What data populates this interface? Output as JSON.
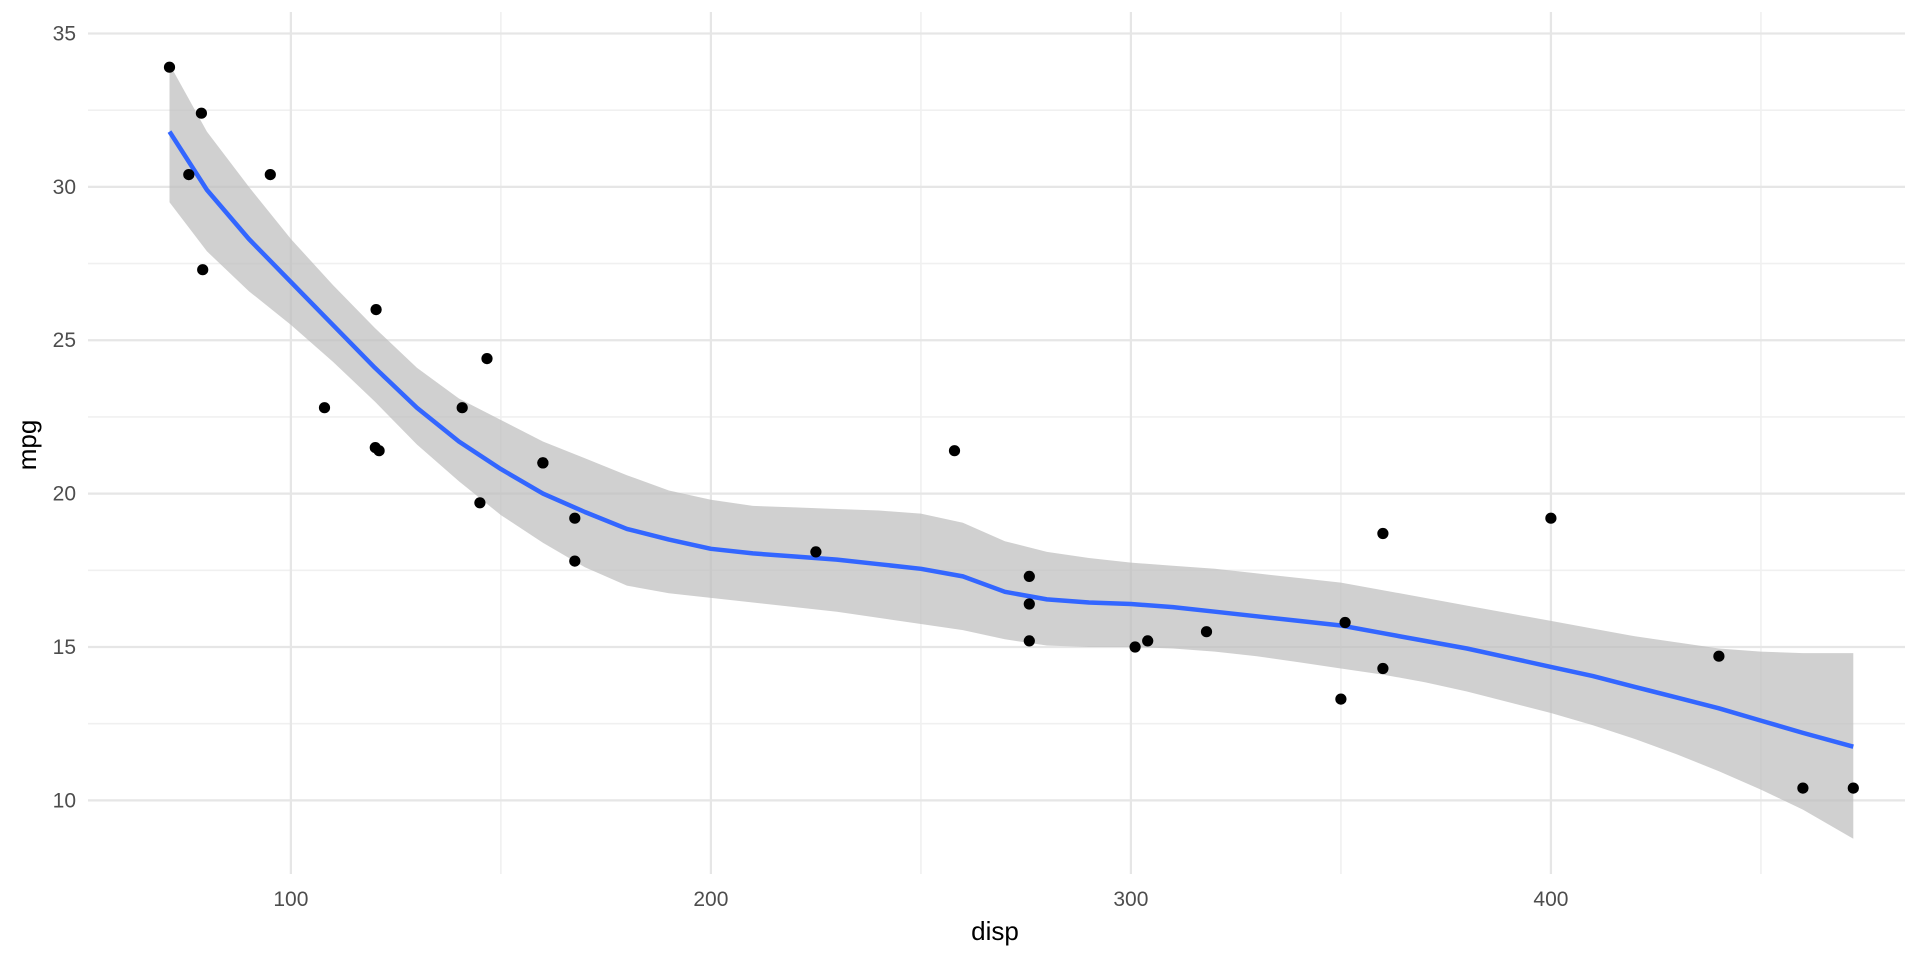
{
  "chart_data": {
    "type": "scatter",
    "title": "",
    "xlabel": "disp",
    "ylabel": "mpg",
    "xlim": [
      51.7,
      484.3
    ],
    "ylim": [
      7.6,
      35.7
    ],
    "x_ticks": [
      100,
      200,
      300,
      400
    ],
    "x_minor_ticks": [
      150,
      250,
      350,
      450
    ],
    "y_ticks": [
      10,
      15,
      20,
      25,
      30,
      35
    ],
    "y_minor_ticks": [
      12.5,
      17.5,
      22.5,
      27.5,
      32.5
    ],
    "x_tick_labels": [
      "100",
      "200",
      "300",
      "400"
    ],
    "y_tick_labels": [
      "10",
      "15",
      "20",
      "25",
      "30",
      "35"
    ],
    "grid": true,
    "legend": "none",
    "colors": {
      "points": "#000000",
      "smooth_line": "#3366ff",
      "ribbon": "#bebebe",
      "grid_major": "#e6e6e6",
      "grid_minor": "#f0f0f0"
    },
    "series": [
      {
        "type": "points",
        "x": [
          160,
          160,
          108,
          258,
          360,
          225,
          360,
          146.7,
          140.8,
          167.6,
          167.6,
          275.8,
          275.8,
          275.8,
          472,
          460,
          440,
          78.7,
          75.7,
          71.1,
          120.1,
          318,
          304,
          350,
          400,
          79,
          120.3,
          95.1,
          351,
          145,
          301,
          121
        ],
        "y": [
          21,
          21,
          22.8,
          21.4,
          18.7,
          18.1,
          14.3,
          24.4,
          22.8,
          19.2,
          17.8,
          16.4,
          17.3,
          15.2,
          10.4,
          10.4,
          14.7,
          32.4,
          30.4,
          33.9,
          21.5,
          15.5,
          15.2,
          13.3,
          19.2,
          27.3,
          26,
          30.4,
          15.8,
          19.7,
          15,
          21.4
        ]
      },
      {
        "type": "smooth",
        "method": "loess",
        "x": [
          71.1,
          80,
          90,
          100,
          110,
          120,
          130,
          140,
          150,
          160,
          170,
          180,
          190,
          200,
          210,
          220,
          230,
          240,
          250,
          260,
          270,
          280,
          290,
          300,
          310,
          320,
          330,
          340,
          350,
          360,
          370,
          380,
          390,
          400,
          410,
          420,
          430,
          440,
          450,
          460,
          472
        ],
        "y": [
          31.8,
          29.9,
          28.3,
          26.9,
          25.5,
          24.1,
          22.8,
          21.7,
          20.8,
          20.0,
          19.4,
          18.85,
          18.5,
          18.2,
          18.05,
          17.95,
          17.85,
          17.7,
          17.55,
          17.3,
          16.8,
          16.55,
          16.45,
          16.4,
          16.3,
          16.15,
          16.0,
          15.85,
          15.7,
          15.45,
          15.2,
          14.95,
          14.65,
          14.35,
          14.05,
          13.7,
          13.35,
          13.0,
          12.6,
          12.2,
          11.75
        ],
        "ymin": [
          29.5,
          27.9,
          26.6,
          25.5,
          24.3,
          23.0,
          21.6,
          20.4,
          19.3,
          18.4,
          17.6,
          17.0,
          16.75,
          16.6,
          16.45,
          16.3,
          16.15,
          15.95,
          15.75,
          15.55,
          15.25,
          15.05,
          15.0,
          15.0,
          14.95,
          14.85,
          14.7,
          14.5,
          14.3,
          14.1,
          13.85,
          13.55,
          13.2,
          12.85,
          12.45,
          12.0,
          11.5,
          10.95,
          10.35,
          9.7,
          8.75
        ],
        "ymax": [
          34.0,
          31.8,
          30.0,
          28.3,
          26.8,
          25.4,
          24.1,
          23.1,
          22.4,
          21.7,
          21.15,
          20.6,
          20.1,
          19.8,
          19.6,
          19.55,
          19.5,
          19.45,
          19.35,
          19.05,
          18.45,
          18.1,
          17.9,
          17.75,
          17.65,
          17.55,
          17.4,
          17.25,
          17.1,
          16.85,
          16.6,
          16.35,
          16.1,
          15.85,
          15.6,
          15.35,
          15.15,
          14.95,
          14.85,
          14.8,
          14.8
        ]
      }
    ]
  }
}
